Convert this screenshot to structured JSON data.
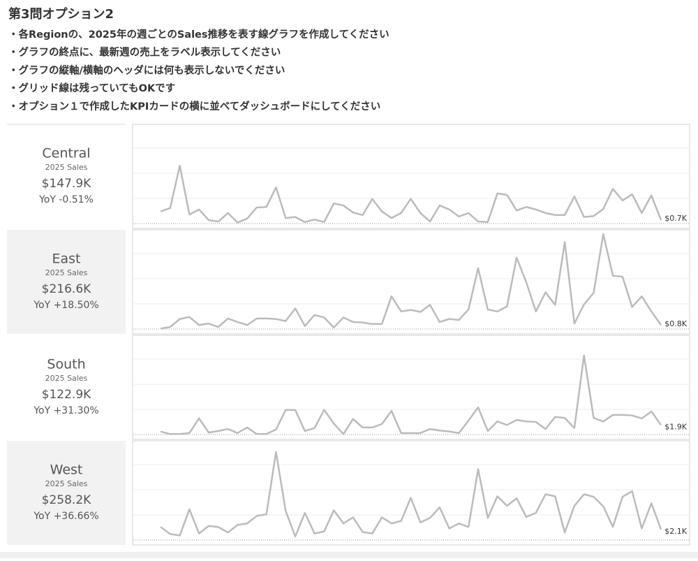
{
  "header": {
    "title": "第3問オプション2",
    "instructions": [
      "・各Regionの、2025年の週ごとのSales推移を表す線グラフを作成してください",
      "・グラフの終点に、最新週の売上をラベル表示してください",
      "・グラフの縦軸/横軸のヘッダには何も表示しないでください",
      "・グリッド線は残っていてもOKです",
      "・オプション１で作成したKPIカードの横に並べてダッシュボードにしてください"
    ]
  },
  "chart_data": [
    {
      "type": "line",
      "title": "Central",
      "kpi_label": "2025 Sales",
      "kpi_value": "$147.9K",
      "yoy": "YoY -0.51%",
      "color": "#bbbbbb",
      "ylim": [
        0,
        20000
      ],
      "yticks": [
        0,
        5000,
        10000,
        15000
      ],
      "grid": true,
      "end_label": "$0.7K",
      "values": [
        2400,
        3100,
        11500,
        1800,
        2800,
        700,
        400,
        2100,
        200,
        1000,
        3200,
        3300,
        7200,
        1100,
        1300,
        300,
        800,
        300,
        4000,
        3600,
        2200,
        1700,
        4900,
        2400,
        1100,
        2100,
        4900,
        2100,
        400,
        3600,
        2800,
        1400,
        2100,
        400,
        300,
        6000,
        5700,
        2600,
        3300,
        2800,
        2100,
        1700,
        1700,
        5400,
        1300,
        1500,
        2900,
        6900,
        4600,
        5800,
        2100,
        5600,
        700
      ]
    },
    {
      "type": "line",
      "title": "East",
      "kpi_label": "2025 Sales",
      "kpi_value": "$216.6K",
      "yoy": "YoY +18.50%",
      "color": "#bbbbbb",
      "ylim": [
        0,
        20000
      ],
      "yticks": [
        0,
        5000,
        10000,
        15000
      ],
      "grid": true,
      "end_label": "$0.8K",
      "values": [
        100,
        400,
        2000,
        2400,
        800,
        1100,
        400,
        2100,
        1400,
        800,
        2100,
        2100,
        2000,
        1600,
        4100,
        600,
        2800,
        2300,
        300,
        2300,
        1400,
        1300,
        1000,
        1000,
        6500,
        3500,
        3800,
        3400,
        4800,
        1400,
        2000,
        1800,
        3900,
        12100,
        3900,
        3500,
        4500,
        14200,
        9300,
        3500,
        7300,
        4800,
        17300,
        1100,
        4900,
        7200,
        18900,
        10600,
        10400,
        4400,
        6500,
        3500,
        800
      ]
    },
    {
      "type": "line",
      "title": "South",
      "kpi_label": "2025 Sales",
      "kpi_value": "$122.9K",
      "yoy": "YoY +31.30%",
      "color": "#bbbbbb",
      "ylim": [
        0,
        20000
      ],
      "yticks": [
        0,
        5000,
        10000,
        15000
      ],
      "grid": true,
      "end_label": "$1.9K",
      "values": [
        600,
        100,
        100,
        300,
        3200,
        400,
        700,
        1100,
        300,
        1400,
        100,
        100,
        1000,
        4900,
        4900,
        700,
        1300,
        4900,
        2200,
        100,
        3100,
        1400,
        1400,
        2100,
        4700,
        300,
        300,
        300,
        1100,
        800,
        600,
        300,
        2800,
        5400,
        700,
        2600,
        1900,
        2900,
        2600,
        2500,
        1100,
        3500,
        3300,
        1300,
        15700,
        3300,
        2600,
        3900,
        3900,
        3800,
        3200,
        4600,
        1900
      ]
    },
    {
      "type": "line",
      "title": "West",
      "kpi_label": "2025 Sales",
      "kpi_value": "$258.2K",
      "yoy": "YoY +36.66%",
      "color": "#bbbbbb",
      "ylim": [
        0,
        20000
      ],
      "yticks": [
        0,
        5000,
        10000,
        15000
      ],
      "grid": true,
      "end_label": "$2.1K",
      "values": [
        2600,
        1200,
        900,
        6100,
        1300,
        2800,
        2600,
        1500,
        3000,
        3300,
        4800,
        5100,
        17500,
        5800,
        700,
        5400,
        1300,
        1700,
        5900,
        3300,
        4500,
        1600,
        1300,
        4500,
        3300,
        3800,
        8400,
        3500,
        4400,
        6500,
        2300,
        3300,
        2600,
        14100,
        4400,
        8700,
        6800,
        8300,
        4600,
        5400,
        9100,
        8700,
        1500,
        6800,
        9100,
        8600,
        6700,
        2600,
        8600,
        9700,
        2300,
        7300,
        2100
      ]
    }
  ]
}
